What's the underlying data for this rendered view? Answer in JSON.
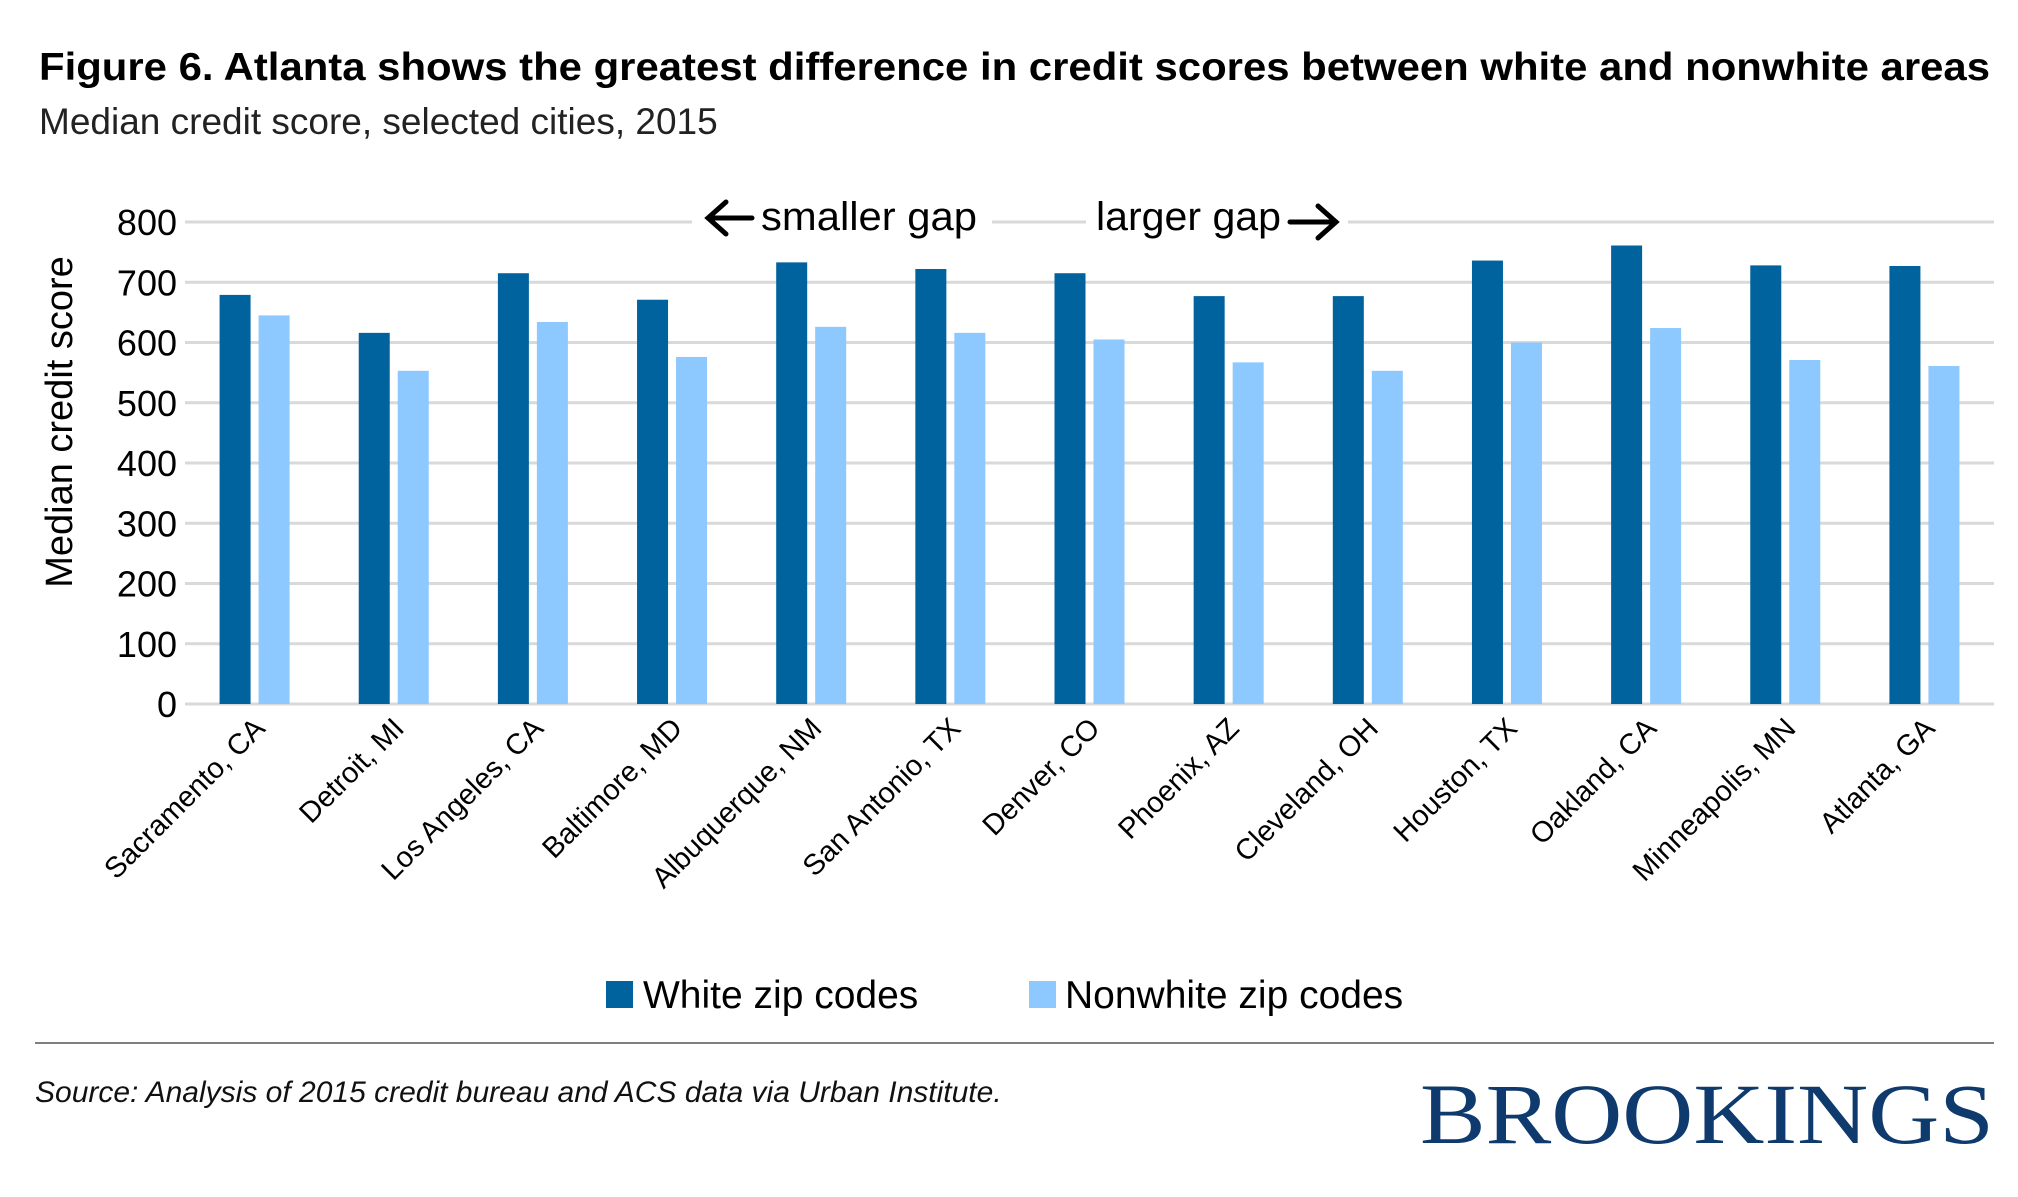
{
  "title": "Figure 6. Atlanta shows the greatest difference in credit scores between white and nonwhite areas",
  "subtitle": "Median credit score, selected cities, 2015",
  "annotations": {
    "left": "smaller gap",
    "right": "larger gap"
  },
  "source": "Source: Analysis of 2015 credit bureau and ACS data via Urban Institute.",
  "logo": "BROOKINGS",
  "colors": {
    "white": "#00639e",
    "nonwhite": "#8dc8fe",
    "grid": "#d9d9d9",
    "logo": "#0f3a6e"
  },
  "chart_data": {
    "type": "bar",
    "title": "Figure 6. Atlanta shows the greatest difference in credit scores between white and nonwhite areas",
    "xlabel": "",
    "ylabel": "Median credit score",
    "ylim": [
      0,
      800
    ],
    "yticks": [
      "0",
      "100",
      "200",
      "300",
      "400",
      "500",
      "600",
      "700",
      "800"
    ],
    "grid": true,
    "legend_position": "bottom",
    "categories": [
      "Sacramento, CA",
      "Detroit, MI",
      "Los Angeles, CA",
      "Baltimore, MD",
      "Albuquerque, NM",
      "San Antonio, TX",
      "Denver, CO",
      "Phoenix, AZ",
      "Cleveland, OH",
      "Houston, TX",
      "Oakland, CA",
      "Minneapolis, MN",
      "Atlanta, GA"
    ],
    "series": [
      {
        "name": "White zip codes",
        "values": [
          679,
          616,
          715,
          671,
          733,
          722,
          715,
          677,
          677,
          736,
          761,
          728,
          727
        ]
      },
      {
        "name": "Nonwhite zip codes",
        "values": [
          645,
          553,
          634,
          576,
          626,
          616,
          605,
          567,
          553,
          600,
          624,
          571,
          561
        ]
      }
    ]
  }
}
